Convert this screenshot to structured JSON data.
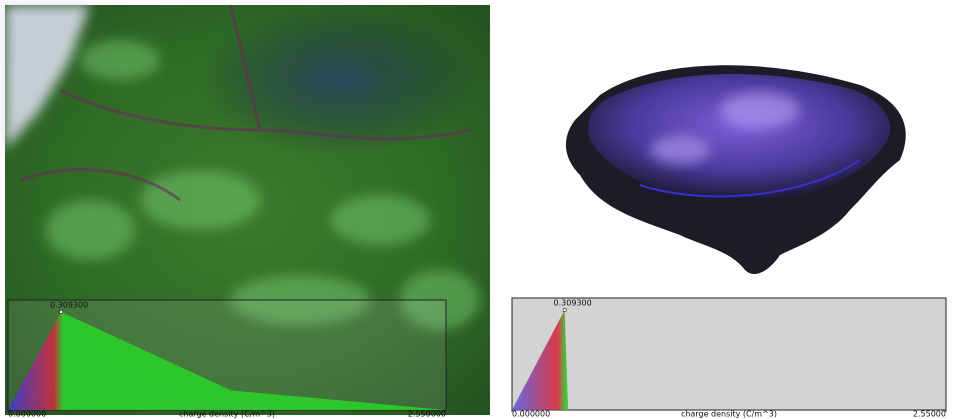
{
  "panels": [
    {
      "x_label": "charge density (C/m^3)",
      "xlim": [
        0,
        2.55
      ],
      "ylim": [
        0,
        1
      ],
      "xticks": [
        {
          "value": 0,
          "label": "0.000000"
        },
        {
          "value": 2.55,
          "label": "2.550000"
        }
      ],
      "peak": {
        "value": 0.3093,
        "label": "0.309300"
      },
      "opacity_x": [
        0,
        0.3093,
        1.3,
        2.55
      ],
      "opacity": [
        0,
        1,
        0.2,
        0
      ]
    },
    {
      "x_label": "charge density (C/m^3)",
      "xlim": [
        0,
        2.55
      ],
      "ylim": [
        0,
        1
      ],
      "xticks": [
        {
          "value": 0,
          "label": "0.000000"
        },
        {
          "value": 2.55,
          "label": "2.55000"
        }
      ],
      "peak": {
        "value": 0.3093,
        "label": "0.309300"
      },
      "opacity_x": [
        0,
        0.3093,
        0.33
      ],
      "opacity": [
        0,
        1,
        0
      ]
    }
  ]
}
